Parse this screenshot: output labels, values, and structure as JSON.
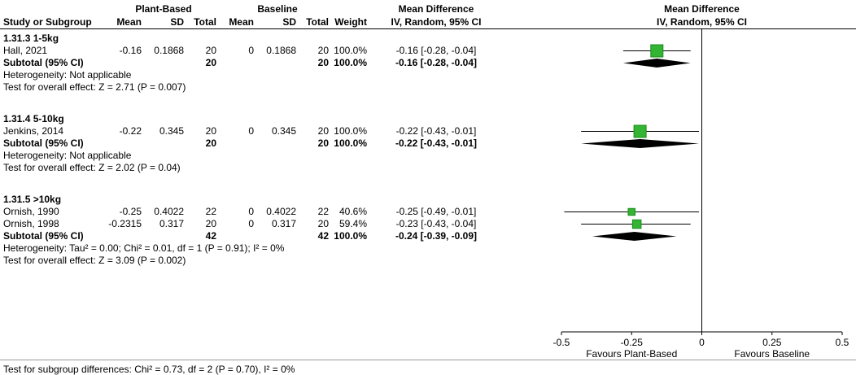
{
  "header": {
    "group1": "Plant-Based",
    "group2": "Baseline",
    "effect_title": "Mean Difference",
    "plot_title": "Mean Difference",
    "plot_subtitle": "IV, Random, 95% CI",
    "columns": [
      "Study or Subgroup",
      "Mean",
      "SD",
      "Total",
      "Mean",
      "SD",
      "Total",
      "Weight",
      "IV, Random, 95% CI"
    ]
  },
  "chart_data": {
    "type": "forest",
    "effect_measure": "Mean Difference",
    "method": "IV, Random, 95% CI",
    "xlim": [
      -0.5,
      0.5
    ],
    "ticks": [
      -0.5,
      -0.25,
      0,
      0.25,
      0.5
    ],
    "tick_labels": [
      "-0.5",
      "-0.25",
      "0",
      "0.25",
      "0.5"
    ],
    "favours_left": "Favours Plant-Based",
    "favours_right": "Favours Baseline",
    "marker_color": "#33b533",
    "marker_border": "#1a8a1a",
    "diamond_color": "#000000",
    "subgroups": [
      {
        "label": "1.31.3 1-5kg",
        "studies": [
          {
            "name": "Hall, 2021",
            "mean1": "-0.16",
            "sd1": "0.1868",
            "n1": "20",
            "mean2": "0",
            "sd2": "0.1868",
            "n2": "20",
            "weight": "100.0%",
            "ci_text": "-0.16 [-0.28, -0.04]",
            "est": -0.16,
            "lo": -0.28,
            "hi": -0.04,
            "weight_pct": 100.0
          }
        ],
        "subtotal": {
          "label": "Subtotal (95% CI)",
          "n1": "20",
          "n2": "20",
          "weight": "100.0%",
          "ci_text": "-0.16 [-0.28, -0.04]",
          "est": -0.16,
          "lo": -0.28,
          "hi": -0.04
        },
        "heterogeneity": "Heterogeneity: Not applicable",
        "overall_effect": "Test for overall effect: Z = 2.71 (P = 0.007)"
      },
      {
        "label": "1.31.4 5-10kg",
        "studies": [
          {
            "name": "Jenkins, 2014",
            "mean1": "-0.22",
            "sd1": "0.345",
            "n1": "20",
            "mean2": "0",
            "sd2": "0.345",
            "n2": "20",
            "weight": "100.0%",
            "ci_text": "-0.22 [-0.43, -0.01]",
            "est": -0.22,
            "lo": -0.43,
            "hi": -0.01,
            "weight_pct": 100.0
          }
        ],
        "subtotal": {
          "label": "Subtotal (95% CI)",
          "n1": "20",
          "n2": "20",
          "weight": "100.0%",
          "ci_text": "-0.22 [-0.43, -0.01]",
          "est": -0.22,
          "lo": -0.43,
          "hi": -0.01
        },
        "heterogeneity": "Heterogeneity: Not applicable",
        "overall_effect": "Test for overall effect: Z = 2.02 (P = 0.04)"
      },
      {
        "label": "1.31.5 >10kg",
        "studies": [
          {
            "name": "Ornish, 1990",
            "mean1": "-0.25",
            "sd1": "0.4022",
            "n1": "22",
            "mean2": "0",
            "sd2": "0.4022",
            "n2": "22",
            "weight": "40.6%",
            "ci_text": "-0.25 [-0.49, -0.01]",
            "est": -0.25,
            "lo": -0.49,
            "hi": -0.01,
            "weight_pct": 40.6
          },
          {
            "name": "Ornish, 1998",
            "mean1": "-0.2315",
            "sd1": "0.317",
            "n1": "20",
            "mean2": "0",
            "sd2": "0.317",
            "n2": "20",
            "weight": "59.4%",
            "ci_text": "-0.23 [-0.43, -0.04]",
            "est": -0.2315,
            "lo": -0.43,
            "hi": -0.04,
            "weight_pct": 59.4
          }
        ],
        "subtotal": {
          "label": "Subtotal (95% CI)",
          "n1": "42",
          "n2": "42",
          "weight": "100.0%",
          "ci_text": "-0.24 [-0.39, -0.09]",
          "est": -0.24,
          "lo": -0.39,
          "hi": -0.09
        },
        "heterogeneity": "Heterogeneity: Tau² = 0.00; Chi² = 0.01, df = 1 (P = 0.91); I² = 0%",
        "overall_effect": "Test for overall effect: Z = 3.09 (P = 0.002)"
      }
    ],
    "footer_test": "Test for subgroup differences: Chi² = 0.73, df = 2 (P = 0.70), I² = 0%"
  }
}
